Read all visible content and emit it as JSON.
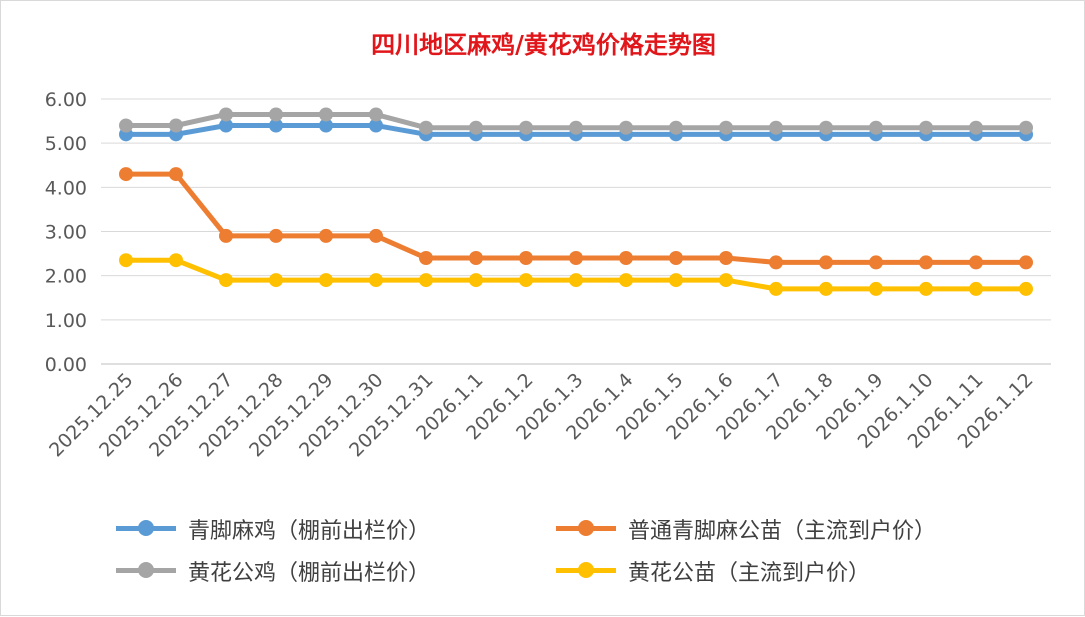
{
  "chart_data": {
    "type": "line",
    "title": "四川地区麻鸡/黄花鸡价格走势图",
    "xlabel": "",
    "ylabel": "",
    "ylim": [
      0,
      6
    ],
    "yticks": [
      "0.00",
      "1.00",
      "2.00",
      "3.00",
      "4.00",
      "5.00",
      "6.00"
    ],
    "grid": true,
    "legend_position": "bottom",
    "categories": [
      "2025.12.25",
      "2025.12.26",
      "2025.12.27",
      "2025.12.28",
      "2025.12.29",
      "2025.12.30",
      "2025.12.31",
      "2026.1.1",
      "2026.1.2",
      "2026.1.3",
      "2026.1.4",
      "2026.1.5",
      "2026.1.6",
      "2026.1.7",
      "2026.1.8",
      "2026.1.9",
      "2026.1.10",
      "2026.1.11",
      "2026.1.12"
    ],
    "series": [
      {
        "name": "青脚麻鸡（棚前出栏价）",
        "color": "#5b9bd5",
        "values": [
          5.2,
          5.2,
          5.4,
          5.4,
          5.4,
          5.4,
          5.2,
          5.2,
          5.2,
          5.2,
          5.2,
          5.2,
          5.2,
          5.2,
          5.2,
          5.2,
          5.2,
          5.2,
          5.2
        ]
      },
      {
        "name": "普通青脚麻公苗（主流到户价）",
        "color": "#ed7d31",
        "values": [
          4.3,
          4.3,
          2.9,
          2.9,
          2.9,
          2.9,
          2.4,
          2.4,
          2.4,
          2.4,
          2.4,
          2.4,
          2.4,
          2.3,
          2.3,
          2.3,
          2.3,
          2.3,
          2.3
        ]
      },
      {
        "name": "黄花公鸡（棚前出栏价）",
        "color": "#a5a5a5",
        "values": [
          5.4,
          5.4,
          5.65,
          5.65,
          5.65,
          5.65,
          5.35,
          5.35,
          5.35,
          5.35,
          5.35,
          5.35,
          5.35,
          5.35,
          5.35,
          5.35,
          5.35,
          5.35,
          5.35
        ]
      },
      {
        "name": "黄花公苗（主流到户价）",
        "color": "#ffc000",
        "values": [
          2.35,
          2.35,
          1.9,
          1.9,
          1.9,
          1.9,
          1.9,
          1.9,
          1.9,
          1.9,
          1.9,
          1.9,
          1.9,
          1.7,
          1.7,
          1.7,
          1.7,
          1.7,
          1.7
        ]
      }
    ]
  }
}
